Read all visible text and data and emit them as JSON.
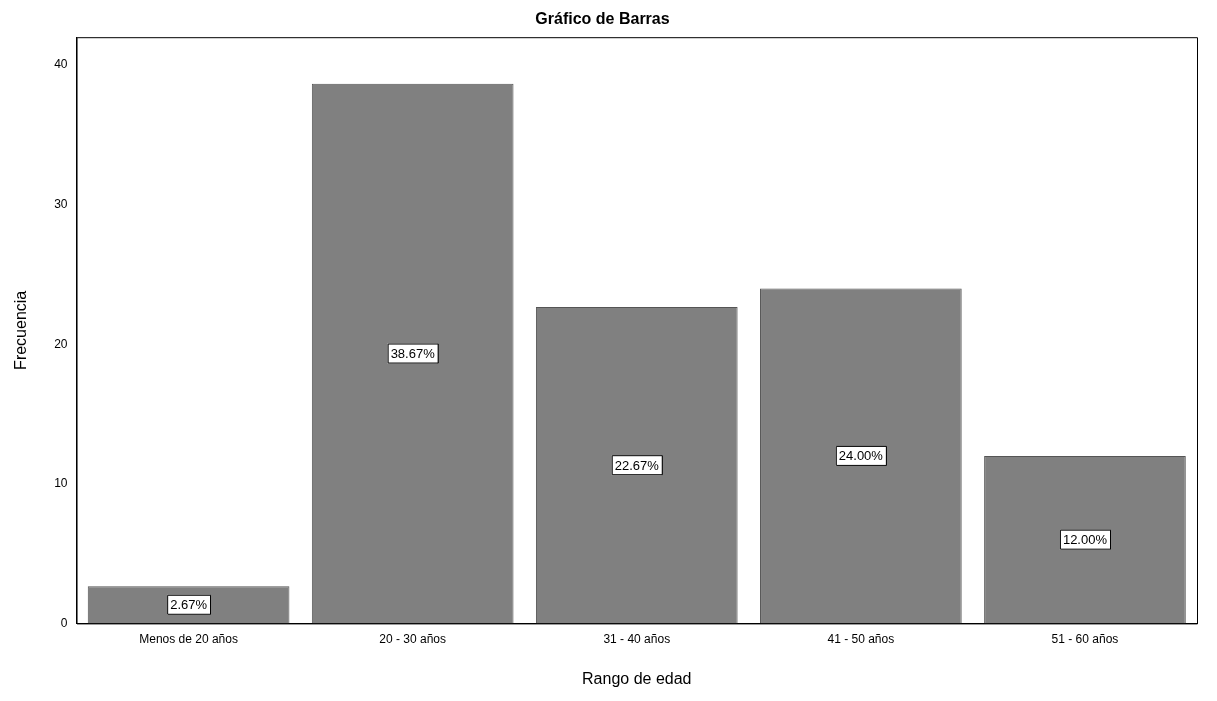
{
  "chart_data": {
    "type": "bar",
    "title": "Gráfico de Barras",
    "xlabel": "Rango de edad",
    "ylabel": "Frecuencia",
    "categories": [
      "Menos de 20 años",
      "20 - 30 años",
      "31 - 40 años",
      "41 - 50 años",
      "51 - 60 años"
    ],
    "values": [
      2.67,
      38.67,
      22.67,
      24.0,
      12.0
    ],
    "value_labels": [
      "2.67%",
      "38.67%",
      "22.67%",
      "24.00%",
      "12.00%"
    ],
    "color": "#808080",
    "ylim": [
      0,
      42
    ],
    "yticks": [
      0,
      10,
      20,
      30,
      40
    ],
    "grid": false,
    "legend": false
  }
}
